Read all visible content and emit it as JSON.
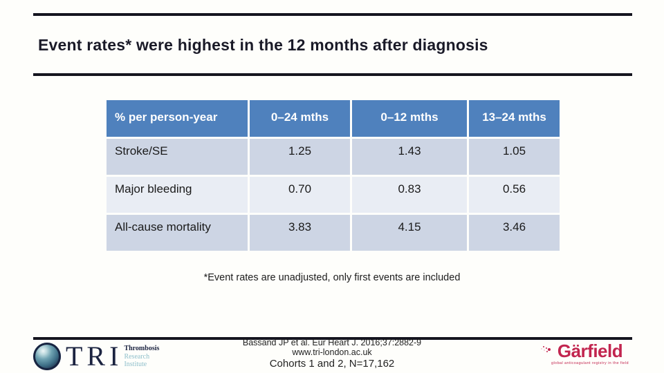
{
  "slide": {
    "title": "Event rates* were highest in the 12 months after diagnosis",
    "footnote": "*Event rates are unadjusted, only first events are included"
  },
  "table": {
    "headers": [
      "% per person-year",
      "0–24 mths",
      "0–12 mths",
      "13–24 mths"
    ],
    "rows": [
      {
        "label": "Stroke/SE",
        "values": [
          "1.25",
          "1.43",
          "1.05"
        ]
      },
      {
        "label": "Major bleeding",
        "values": [
          "0.70",
          "0.83",
          "0.56"
        ]
      },
      {
        "label": "All-cause mortality",
        "values": [
          "3.83",
          "4.15",
          "3.46"
        ]
      }
    ]
  },
  "footer": {
    "citation_line1": "Bassand JP et al. Eur Heart J. 2016;37:2882-9",
    "citation_line2": "www.tri-london.ac.uk",
    "citation_line3": "Cohorts 1 and 2, N=17,162",
    "tri_logo": {
      "acronym": "TRI",
      "line1": "Thrombosis",
      "line2": "Research",
      "line3": "Institute"
    },
    "garfield_logo": {
      "name": "Gärfield",
      "tagline": "global anticoagulant registry in the field"
    }
  },
  "colors": {
    "header_blue": "#4F81BD",
    "row_dark": "#CDD5E4",
    "row_light": "#E9EDF4",
    "rule_navy": "#15151F",
    "title_navy": "#1A1A28",
    "tri_navy": "#1B2340",
    "tri_teal": "#8FBFCB",
    "garfield_crimson": "#C2254F"
  }
}
